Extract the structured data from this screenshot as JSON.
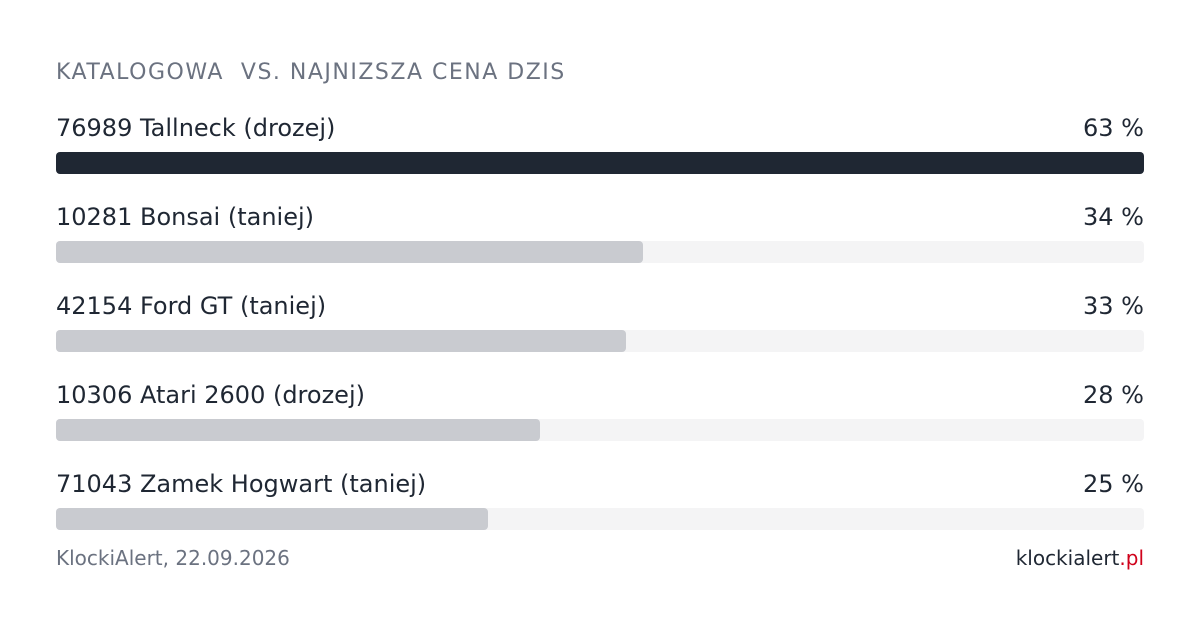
{
  "chart_data": {
    "type": "bar",
    "orientation": "horizontal",
    "title": "KATALOGOWA  VS. NAJNIZSZA CENA DZIS",
    "categories": [
      "76989 Tallneck (drozej)",
      "10281 Bonsai (taniej)",
      "42154 Ford GT (taniej)",
      "10306 Atari 2600 (drozej)",
      "71043 Zamek Hogwart (taniej)"
    ],
    "values": [
      63,
      34,
      33,
      28,
      25
    ],
    "value_labels": [
      "63 %",
      "34 %",
      "33 %",
      "28 %",
      "25 %"
    ],
    "colors": [
      "#1f2733",
      "#c9cbd0",
      "#c9cbd0",
      "#c9cbd0",
      "#c9cbd0"
    ],
    "track_color": "#f4f4f5",
    "source": "KlockiAlert, 22.09.2026",
    "brand": "klockialert",
    "brand_tld": ".pl"
  }
}
